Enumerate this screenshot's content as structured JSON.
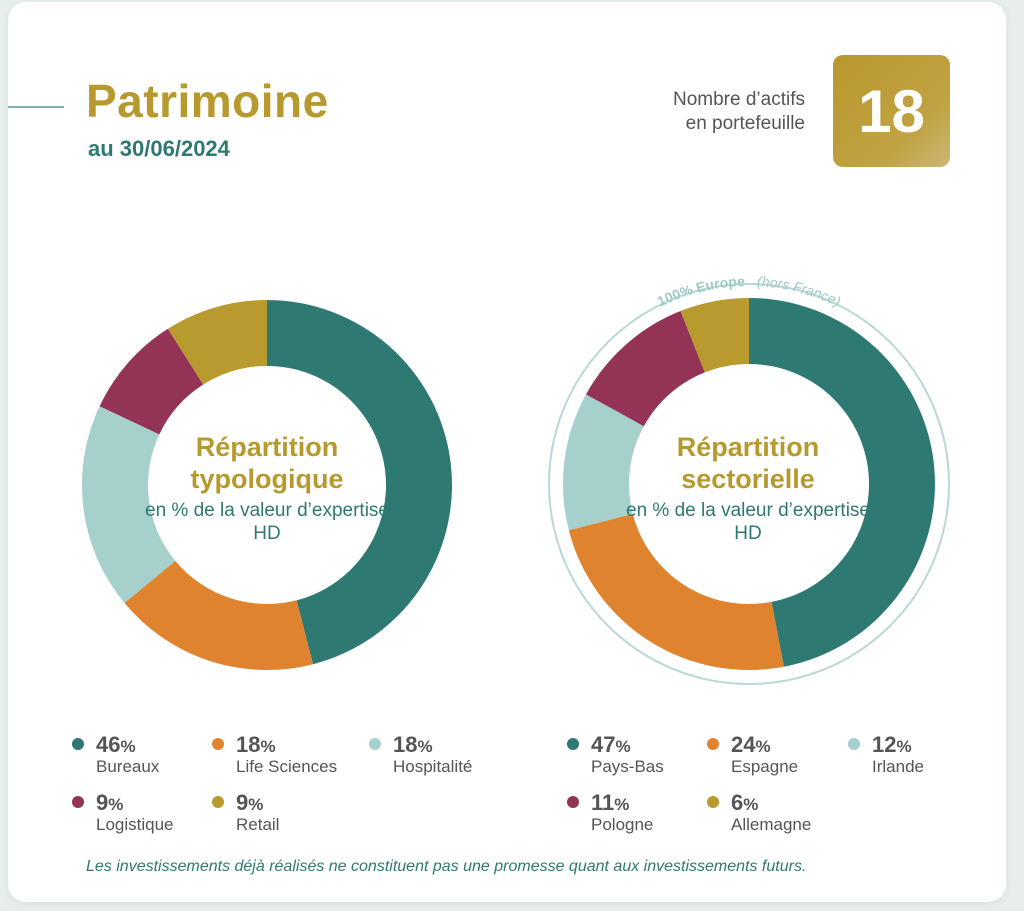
{
  "header": {
    "title": "Patrimoine",
    "subtitle": "au 30/06/2024",
    "count_label_line1": "Nombre d’actifs",
    "count_label_line2": "en portefeuille",
    "count_value": "18"
  },
  "colors": {
    "teal": "#2e7a73",
    "orange": "#e0832f",
    "light_teal": "#a5d0cc",
    "burgundy": "#933456",
    "gold": "#b89a2f",
    "title_gold": "#b79a2e"
  },
  "chart_data": [
    {
      "type": "pie",
      "title": "Répartition typologique",
      "subtitle": "en % de la valeur d’expertise HD",
      "categories": [
        "Bureaux",
        "Life Sciences",
        "Hospitalité",
        "Logistique",
        "Retail"
      ],
      "values": [
        46,
        18,
        18,
        9,
        9
      ],
      "colors": [
        "#2e7a73",
        "#e0832f",
        "#a5d0cc",
        "#933456",
        "#b89a2f"
      ],
      "legend_position": "bottom"
    },
    {
      "type": "pie",
      "title": "Répartition sectorielle",
      "subtitle": "en % de la valeur d’expertise HD",
      "categories": [
        "Pays-Bas",
        "Espagne",
        "Irlande",
        "Pologne",
        "Allemagne"
      ],
      "values": [
        47,
        24,
        12,
        11,
        6
      ],
      "colors": [
        "#2e7a73",
        "#e0832f",
        "#a5d0cc",
        "#933456",
        "#b89a2f"
      ],
      "ring_label_bold": "100% Europe",
      "ring_label_italic": "(hors France)",
      "legend_position": "bottom"
    }
  ],
  "footnote": "Les investissements déjà réalisés ne constituent pas une promesse quant aux investissements futurs."
}
